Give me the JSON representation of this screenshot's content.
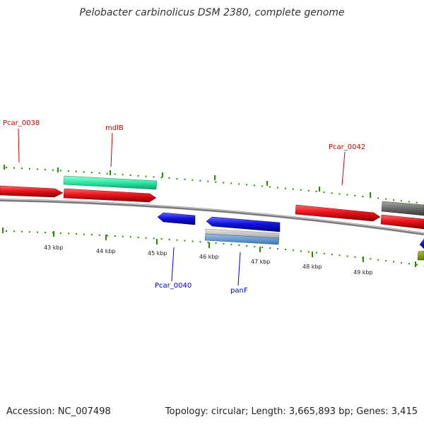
{
  "map": {
    "title": "Pelobacter carbinolicus DSM 2380, complete genome",
    "accession": "Accession: NC_007498",
    "summary": "Topology: circular; Length: 3,665,893 bp; Genes: 3,415",
    "colors": {
      "forward_gene": "#e8141c",
      "reverse_gene": "#1010d8",
      "rna_feature": "#2ee6a4",
      "grey_feature": "#6a6a6a",
      "scale_tick": "#2a8a00",
      "forward_label": "#cc0000",
      "reverse_label": "#0000cc",
      "backbone": "#8a8a8a"
    }
  },
  "features": [
    {
      "name": "Pcar_0038",
      "strand": "forward",
      "labeled": true
    },
    {
      "name": "mdlB",
      "strand": "forward",
      "labeled": true
    },
    {
      "name": "Pcar_0040",
      "strand": "reverse",
      "labeled": true
    },
    {
      "name": "panF",
      "strand": "reverse",
      "labeled": true
    },
    {
      "name": "Pcar_0042",
      "strand": "forward",
      "labeled": true
    }
  ],
  "scale_labels": [
    "43 kbp",
    "44 kbp",
    "45 kbp",
    "46 kbp",
    "47 kbp",
    "48 kbp",
    "49 kbp"
  ]
}
